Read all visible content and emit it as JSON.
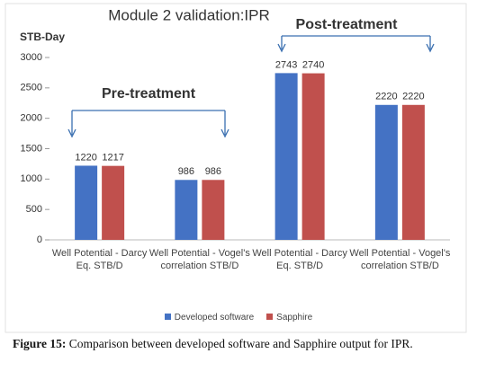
{
  "chart_data": {
    "type": "bar",
    "title": "Module 2 validation:IPR",
    "y_label": "STB-Day",
    "categories": [
      "Well Potential - Darcy Eq. STB/D",
      "Well Potential - Vogel's correlation STB/D",
      "Well Potential - Darcy Eq. STB/D",
      "Well Potential - Vogel's correlation STB/D"
    ],
    "series": [
      {
        "name": "Developed software",
        "color": "#4472c4",
        "values": [
          1220,
          986,
          2743,
          2220
        ]
      },
      {
        "name": "Sapphire",
        "color": "#c0504d",
        "values": [
          1217,
          986,
          2740,
          2220
        ]
      }
    ],
    "ylim": [
      0,
      3000
    ],
    "yticks": [
      0,
      500,
      1000,
      1500,
      2000,
      2500,
      3000
    ],
    "grid": false,
    "annotations": [
      "Pre-treatment",
      "Post-treatment"
    ]
  },
  "caption": {
    "label": "Figure 15:",
    "text": "Comparison between developed software and Sapphire output for IPR."
  }
}
